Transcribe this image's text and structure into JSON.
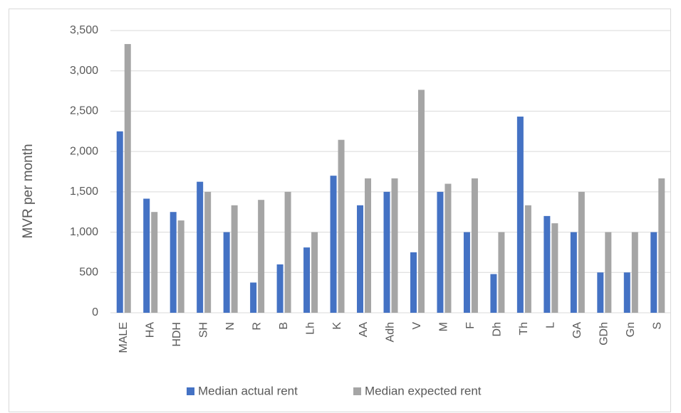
{
  "chart_data": {
    "type": "bar",
    "title": "",
    "xlabel": "",
    "ylabel": "MVR per month",
    "ylim": [
      0,
      3500
    ],
    "ytick_step": 500,
    "ytick_labels": [
      "0",
      "500",
      "1,000",
      "1,500",
      "2,000",
      "2,500",
      "3,000",
      "3,500"
    ],
    "grid": true,
    "legend_position": "bottom",
    "categories": [
      "MALE",
      "HA",
      "HDH",
      "SH",
      "N",
      "R",
      "B",
      "Lh",
      "K",
      "AA",
      "Adh",
      "V",
      "M",
      "F",
      "Dh",
      "Th",
      "L",
      "GA",
      "GDh",
      "Gn",
      "S"
    ],
    "series": [
      {
        "name": "Median actual rent",
        "color": "#4472c4",
        "values": [
          2250,
          1415,
          1250,
          1625,
          1000,
          375,
          600,
          810,
          1700,
          1333,
          1500,
          750,
          1500,
          1000,
          480,
          2433,
          1200,
          1000,
          500,
          500,
          1000
        ]
      },
      {
        "name": "Median expected rent",
        "color": "#a5a5a5",
        "values": [
          3333,
          1250,
          1145,
          1500,
          1333,
          1400,
          1500,
          1000,
          2145,
          1667,
          1667,
          2765,
          1600,
          1667,
          1000,
          1333,
          1110,
          1500,
          1000,
          1000,
          1667
        ]
      }
    ]
  }
}
